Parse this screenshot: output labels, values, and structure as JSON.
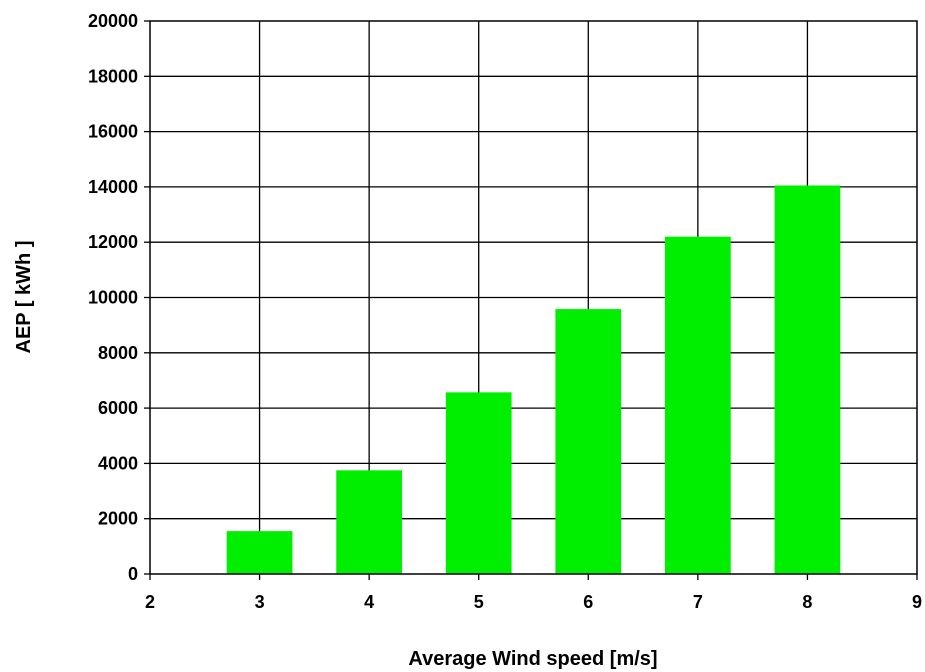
{
  "chart_data": {
    "type": "bar",
    "title": "",
    "xlabel": "Average Wind speed [m/s]",
    "ylabel": "AEP [ kWh ]",
    "x": [
      3,
      4,
      5,
      6,
      7,
      8
    ],
    "values": [
      1550,
      3750,
      6570,
      9580,
      12200,
      14050
    ],
    "xlim": [
      2,
      9
    ],
    "ylim": [
      0,
      20000
    ],
    "x_ticks": [
      "2",
      "3",
      "4",
      "5",
      "6",
      "7",
      "8",
      "9"
    ],
    "y_ticks": [
      "0",
      "2000",
      "4000",
      "6000",
      "8000",
      "10000",
      "12000",
      "14000",
      "16000",
      "18000",
      "20000"
    ],
    "grid": true,
    "legend": "none",
    "bar_color": "#00ee00",
    "background_color": "#ffffff",
    "grid_color": "#000000"
  }
}
